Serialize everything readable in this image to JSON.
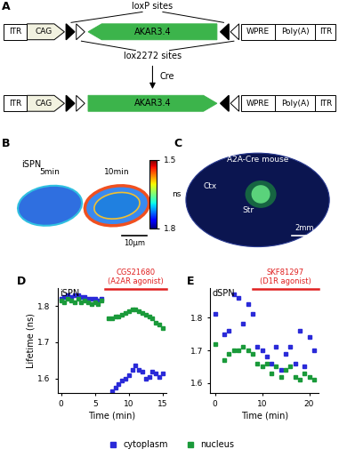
{
  "panel_labels": [
    "A",
    "B",
    "C",
    "D",
    "E"
  ],
  "construct": {
    "loxp_label": "loxP sites",
    "lox2272_label": "lox2272 sites",
    "enzyme": "Cre",
    "elements": [
      "ITR",
      "CAG",
      "AKAR3.4",
      "WPRE",
      "Poly(A)",
      "ITR"
    ]
  },
  "imaging": {
    "cell_type": "iSPN",
    "times": [
      "5min",
      "10min"
    ],
    "scale_bar": "10μm",
    "colorbar": {
      "label": "ns",
      "range": [
        1.5,
        1.8
      ],
      "ticks": [
        1.5,
        1.8
      ]
    }
  },
  "section": {
    "title": "A2A-Cre mouse",
    "regions": [
      "Ctx",
      "Str"
    ],
    "scale_bar": "2mm"
  },
  "chart_data": [
    {
      "type": "scatter",
      "title": "iSPN",
      "xlabel": "Time (min)",
      "ylabel": "Lifetime (ns)",
      "xlim": [
        -0.5,
        15.5
      ],
      "ylim": [
        1.56,
        1.85
      ],
      "xticks": [
        0,
        5,
        10,
        15
      ],
      "yticks": [
        1.6,
        1.7,
        1.8
      ],
      "marker": "square",
      "legend": "lower center",
      "treatment": {
        "label": "CGS21680\n(A2AR agonist)",
        "start": 6.5
      },
      "x": [
        0,
        0.5,
        1,
        1.5,
        2,
        2.5,
        3,
        3.5,
        4,
        4.5,
        5,
        5.5,
        6,
        7,
        7.5,
        8,
        8.5,
        9,
        9.5,
        10,
        10.5,
        11,
        11.5,
        12,
        12.5,
        13,
        13.5,
        14,
        14.5,
        15
      ],
      "series": [
        {
          "name": "cytoplasm",
          "color": "#2a2ad8",
          "values": [
            1.82,
            1.825,
            1.83,
            1.825,
            1.83,
            1.83,
            1.825,
            1.825,
            1.82,
            1.82,
            1.82,
            1.815,
            1.82,
            null,
            1.565,
            1.575,
            1.585,
            1.595,
            1.6,
            1.61,
            1.625,
            1.635,
            1.625,
            1.62,
            1.6,
            1.605,
            1.62,
            1.615,
            1.605,
            1.615
          ]
        },
        {
          "name": "nucleus",
          "color": "#1a9a3a",
          "values": [
            1.815,
            1.81,
            1.82,
            1.815,
            1.81,
            1.82,
            1.81,
            1.815,
            1.81,
            1.805,
            1.81,
            1.805,
            1.815,
            1.765,
            1.765,
            1.77,
            1.77,
            1.775,
            1.78,
            1.785,
            1.79,
            1.79,
            1.785,
            1.78,
            1.775,
            1.77,
            1.765,
            1.755,
            1.75,
            1.74
          ]
        }
      ]
    },
    {
      "type": "scatter",
      "title": "dSPN",
      "xlabel": "Time (min)",
      "xlim": [
        -1,
        22
      ],
      "ylim": [
        1.57,
        1.89
      ],
      "xticks": [
        0,
        10,
        20
      ],
      "yticks": [
        1.6,
        1.7,
        1.8
      ],
      "marker": "square",
      "treatment": {
        "label": "SKF81297\n(D1R agonist)",
        "start": 8
      },
      "x": [
        0,
        1,
        2,
        3,
        4,
        5,
        6,
        7,
        8,
        9,
        10,
        11,
        12,
        13,
        14,
        15,
        16,
        17,
        18,
        19,
        20,
        21
      ],
      "series": [
        {
          "name": "cytoplasm",
          "color": "#2a2ad8",
          "values": [
            1.81,
            null,
            1.75,
            1.76,
            1.87,
            1.86,
            1.78,
            1.84,
            1.81,
            1.71,
            1.7,
            1.68,
            1.66,
            1.71,
            1.64,
            1.69,
            1.71,
            1.66,
            1.76,
            1.65,
            1.74,
            1.7
          ]
        },
        {
          "name": "nucleus",
          "color": "#1a9a3a",
          "values": [
            1.72,
            null,
            1.67,
            1.69,
            1.7,
            1.7,
            1.71,
            1.7,
            1.69,
            1.66,
            1.65,
            1.66,
            1.63,
            1.65,
            1.62,
            1.64,
            1.65,
            1.62,
            1.61,
            1.63,
            1.62,
            1.61
          ]
        }
      ]
    }
  ]
}
